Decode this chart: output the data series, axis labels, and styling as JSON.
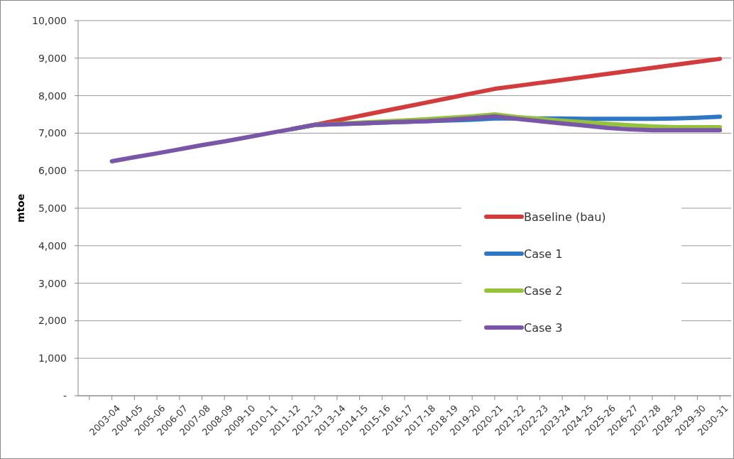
{
  "chart_data": {
    "type": "line",
    "ylabel": "mtoe",
    "categories": [
      null,
      "2003-04",
      "2004-05",
      "2005-06",
      "2006-07",
      "2007-08",
      "2008-09",
      "2009-10",
      "2010-11",
      "2011-12",
      "2012-13",
      "2013-14",
      "2014-15",
      "2015-16",
      "2016-17",
      "2017-18",
      "2018-19",
      "2019-20",
      "2020-21",
      "2021-22",
      "2022-23",
      "2023-24",
      "2024-25",
      "2025-26",
      "2026-27",
      "2027-28",
      "2028-29",
      "2029-30",
      "2030-31"
    ],
    "series": [
      {
        "name": "Baseline (bau)",
        "color": "#d23c3c",
        "values": [
          null,
          null,
          null,
          null,
          null,
          null,
          null,
          null,
          null,
          7110,
          7220,
          7340,
          7460,
          7580,
          7700,
          7820,
          7940,
          8060,
          8180,
          8260,
          8340,
          8420,
          8500,
          8580,
          8660,
          8740,
          8820,
          8900,
          8980
        ]
      },
      {
        "name": "Case 1",
        "color": "#2f77c4",
        "values": [
          null,
          null,
          null,
          null,
          null,
          null,
          null,
          null,
          null,
          7110,
          7220,
          7240,
          7260,
          7280,
          7300,
          7320,
          7340,
          7360,
          7390,
          7390,
          7390,
          7390,
          7380,
          7380,
          7380,
          7380,
          7390,
          7410,
          7440
        ]
      },
      {
        "name": "Case 2",
        "color": "#95c23a",
        "values": [
          null,
          null,
          null,
          null,
          null,
          null,
          null,
          null,
          null,
          7110,
          7220,
          7250,
          7280,
          7310,
          7340,
          7370,
          7410,
          7450,
          7500,
          7430,
          7380,
          7330,
          7290,
          7250,
          7210,
          7180,
          7160,
          7160,
          7160
        ]
      },
      {
        "name": "Case 3",
        "color": "#7a56a8",
        "values": [
          null,
          6250,
          6360,
          6460,
          6570,
          6680,
          6780,
          6890,
          7000,
          7110,
          7220,
          7240,
          7260,
          7280,
          7300,
          7320,
          7360,
          7400,
          7450,
          7380,
          7320,
          7260,
          7200,
          7140,
          7100,
          7080,
          7080,
          7080,
          7080
        ]
      }
    ],
    "ylim": [
      0,
      10000
    ],
    "yticks": [
      {
        "value": 0,
        "label": "-"
      },
      {
        "value": 1000,
        "label": "1,000"
      },
      {
        "value": 2000,
        "label": "2,000"
      },
      {
        "value": 3000,
        "label": "3,000"
      },
      {
        "value": 4000,
        "label": "4,000"
      },
      {
        "value": 5000,
        "label": "5,000"
      },
      {
        "value": 6000,
        "label": "6,000"
      },
      {
        "value": 7000,
        "label": "7,000"
      },
      {
        "value": 8000,
        "label": "8,000"
      },
      {
        "value": 9000,
        "label": "9,000"
      },
      {
        "value": 10000,
        "label": "10,000"
      }
    ],
    "grid": "y",
    "legend": "right",
    "marker": "none",
    "line_style": "solid"
  }
}
